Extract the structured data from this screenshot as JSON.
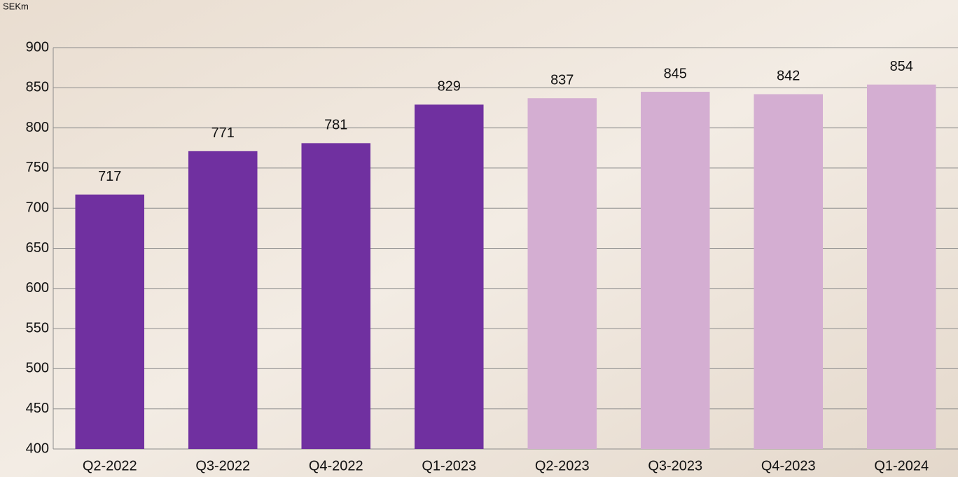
{
  "chart_data": {
    "type": "bar",
    "ylabel": "SEKm",
    "categories": [
      "Q2-2022",
      "Q3-2022",
      "Q4-2022",
      "Q1-2023",
      "Q2-2023",
      "Q3-2023",
      "Q4-2023",
      "Q1-2024"
    ],
    "values": [
      717,
      771,
      781,
      829,
      837,
      845,
      842,
      854
    ],
    "colors": [
      "#7030a0",
      "#7030a0",
      "#7030a0",
      "#7030a0",
      "#d4aed2",
      "#d4aed2",
      "#d4aed2",
      "#d4aed2"
    ],
    "ylim": [
      400,
      900
    ],
    "yticks": [
      400,
      450,
      500,
      550,
      600,
      650,
      700,
      750,
      800,
      850,
      900
    ],
    "grid": true
  }
}
